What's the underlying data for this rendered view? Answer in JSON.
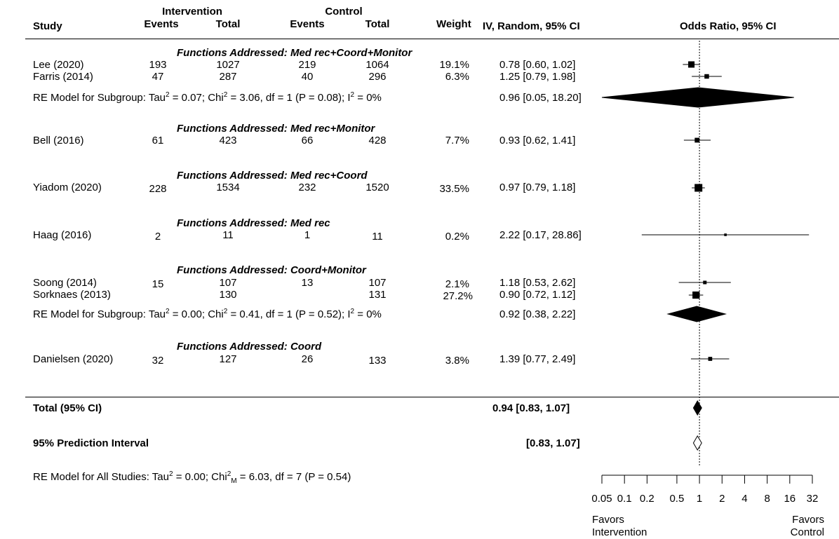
{
  "headers": {
    "study": "Study",
    "intervention": "Intervention",
    "control": "Control",
    "events": "Events",
    "total": "Total",
    "weight": "Weight",
    "ci_col": "IV, Random, 95% CI",
    "or_col": "Odds Ratio, 95% CI"
  },
  "subgroups": [
    {
      "label": "Functions Addressed: Med rec+Coord+Monitor",
      "re_pre": "RE Model for Subgroup: Tau",
      "re_mid1": " = 0.07; Chi",
      "re_mid2": " = 3.06, df = 1 (P = 0.08); I",
      "re_post": " = 0%",
      "re_ci": "0.96 [0.05, 18.20]"
    },
    {
      "label": "Functions Addressed: Med rec+Monitor"
    },
    {
      "label": "Functions Addressed: Med rec+Coord"
    },
    {
      "label": "Functions Addressed: Med rec"
    },
    {
      "label": "Functions Addressed: Coord+Monitor",
      "re_pre": "RE Model for Subgroup: Tau",
      "re_mid1": " = 0.00; Chi",
      "re_mid2": " = 0.41, df = 1 (P = 0.52); I",
      "re_post": " = 0%",
      "re_ci": "0.92 [0.38,  2.22]"
    },
    {
      "label": "Functions Addressed: Coord"
    }
  ],
  "studies": [
    {
      "name": "Lee (2020)",
      "ie": "193",
      "it": "1027",
      "ce": "219",
      "ct": "1064",
      "w": "19.1%",
      "ci": "0.78 [0.60,  1.02]"
    },
    {
      "name": "Farris  (2014)",
      "ie": "47",
      "it": "287",
      "ce": "40",
      "ct": "296",
      "w": "6.3%",
      "ci": "1.25 [0.79,  1.98]"
    },
    {
      "name": "Bell (2016)",
      "ie": "61",
      "it": "423",
      "ce": "66",
      "ct": "428",
      "w": "7.7%",
      "ci": "0.93 [0.62,  1.41]"
    },
    {
      "name": "Yiadom (2020)",
      "ie": "228",
      "it": "1534",
      "ce": "232",
      "ct": "1520",
      "w": "33.5%",
      "ci": "0.97 [0.79,  1.18]"
    },
    {
      "name": "Haag (2016)",
      "ie": "2",
      "it": "11",
      "ce": "1",
      "ct": "11",
      "w": "0.2%",
      "ci": "2.22 [0.17, 28.86]"
    },
    {
      "name": "Soong (2014)",
      "ie": "15",
      "it": "107",
      "ce": "13",
      "ct": "107",
      "w": "2.1%",
      "ci": "1.18 [0.53,  2.62]"
    },
    {
      "name": "Sorknaes (2013)",
      "ie": "",
      "it": "130",
      "ce": "",
      "ct": "131",
      "w": "27.2%",
      "ci": "0.90 [0.72,  1.12]"
    },
    {
      "name": "Danielsen (2020)",
      "ie": "32",
      "it": "127",
      "ce": "26",
      "ct": "133",
      "w": "3.8%",
      "ci": "1.39 [0.77,  2.49]"
    }
  ],
  "total": {
    "label": "Total (95% CI)",
    "ci": "0.94 [0.83,  1.07]"
  },
  "prediction": {
    "label": "95% Prediction Interval",
    "ci": "[0.83,  1.07]"
  },
  "overall_re": {
    "pre": "RE Model for All Studies: Tau",
    "mid1": " = 0.00; Chi",
    "sub": "M",
    "mid2": " = 6.03, df = 7 (P = 0.54)"
  },
  "axis": {
    "ticks": [
      "0.05",
      "0.1",
      "0.2",
      "0.5",
      "1",
      "2",
      "4",
      "8",
      "16",
      "32"
    ]
  },
  "favors": {
    "left1": "Favors",
    "left2": "Intervention",
    "right1": "Favors",
    "right2": "Control"
  },
  "chart_data": {
    "type": "scatter",
    "subtype": "forest",
    "title": "",
    "xlabel": "Odds Ratio, 95% CI",
    "log_scale": true,
    "xticks": [
      0.05,
      0.1,
      0.2,
      0.5,
      1,
      2,
      4,
      8,
      16,
      32
    ],
    "reference_line": 1,
    "studies": [
      {
        "name": "Lee (2020)",
        "or": 0.78,
        "lo": 0.6,
        "hi": 1.02,
        "weight": 19.1
      },
      {
        "name": "Farris  (2014)",
        "or": 1.25,
        "lo": 0.79,
        "hi": 1.98,
        "weight": 6.3
      },
      {
        "name": "Bell (2016)",
        "or": 0.93,
        "lo": 0.62,
        "hi": 1.41,
        "weight": 7.7
      },
      {
        "name": "Yiadom (2020)",
        "or": 0.97,
        "lo": 0.79,
        "hi": 1.18,
        "weight": 33.5
      },
      {
        "name": "Haag (2016)",
        "or": 2.22,
        "lo": 0.17,
        "hi": 28.86,
        "weight": 0.2
      },
      {
        "name": "Soong (2014)",
        "or": 1.18,
        "lo": 0.53,
        "hi": 2.62,
        "weight": 2.1
      },
      {
        "name": "Sorknaes (2013)",
        "or": 0.9,
        "lo": 0.72,
        "hi": 1.12,
        "weight": 27.2
      },
      {
        "name": "Danielsen (2020)",
        "or": 1.39,
        "lo": 0.77,
        "hi": 2.49,
        "weight": 3.8
      }
    ],
    "subgroup_diamonds": [
      {
        "or": 0.96,
        "lo": 0.05,
        "hi": 18.2
      },
      {
        "or": 0.92,
        "lo": 0.38,
        "hi": 2.22
      }
    ],
    "overall": {
      "or": 0.94,
      "lo": 0.83,
      "hi": 1.07,
      "filled": true
    },
    "prediction_interval": {
      "or": 0.94,
      "lo": 0.83,
      "hi": 1.07,
      "filled": false
    }
  }
}
